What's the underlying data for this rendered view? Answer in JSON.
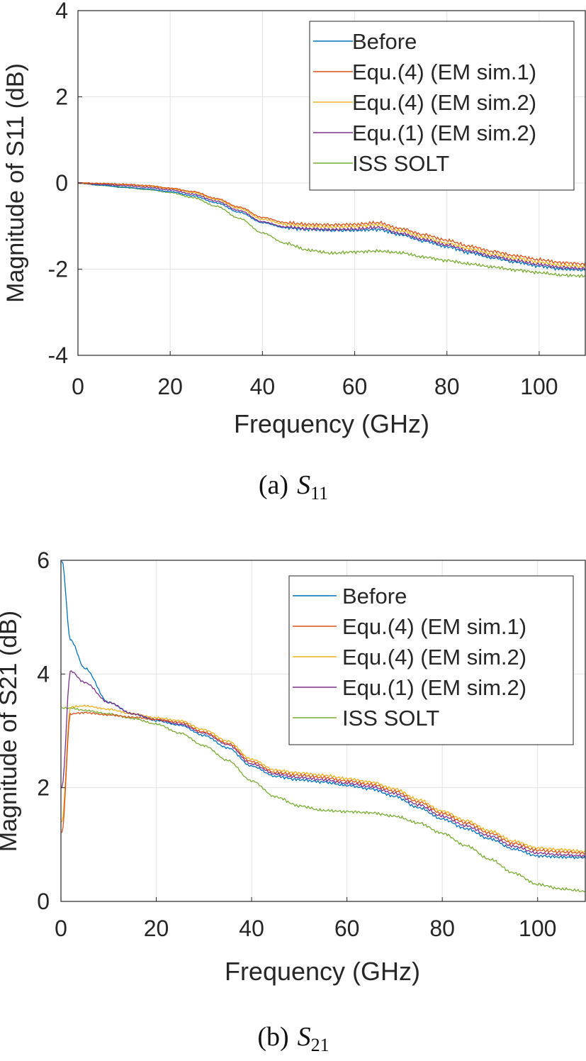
{
  "chart_data": [
    {
      "type": "line",
      "xlabel": "Frequency (GHz)",
      "ylabel": "Magnitude of S11 (dB)",
      "xlim": [
        0,
        110
      ],
      "ylim": [
        -4,
        4
      ],
      "xticks": [
        0,
        20,
        40,
        60,
        80,
        100
      ],
      "yticks": [
        -4,
        -2,
        0,
        2,
        4
      ],
      "xtick_labels": [
        "0",
        "20",
        "40",
        "60",
        "80",
        "100"
      ],
      "ytick_labels": [
        "-4",
        "-2",
        "0",
        "2",
        "4"
      ],
      "grid": true,
      "legend_position": "top-right",
      "caption_prefix": "(a)",
      "caption_symbol": "S",
      "caption_sub": "11",
      "x": [
        0,
        5,
        10,
        15,
        20,
        25,
        30,
        35,
        40,
        45,
        50,
        55,
        60,
        65,
        70,
        75,
        80,
        85,
        90,
        95,
        100,
        105,
        110
      ],
      "series": [
        {
          "name": "Before",
          "color": "#0072BD",
          "values": [
            0.0,
            -0.05,
            -0.1,
            -0.14,
            -0.2,
            -0.3,
            -0.46,
            -0.68,
            -0.92,
            -1.04,
            -1.08,
            -1.1,
            -1.1,
            -1.08,
            -1.2,
            -1.35,
            -1.48,
            -1.62,
            -1.74,
            -1.84,
            -1.93,
            -2.0,
            -2.02
          ]
        },
        {
          "name": "Equ.(4) (EM sim.1)",
          "color": "#D95319",
          "values": [
            0.0,
            -0.01,
            -0.03,
            -0.06,
            -0.12,
            -0.2,
            -0.36,
            -0.56,
            -0.8,
            -0.92,
            -0.96,
            -0.97,
            -0.96,
            -0.92,
            -1.06,
            -1.2,
            -1.33,
            -1.47,
            -1.59,
            -1.69,
            -1.78,
            -1.85,
            -1.88
          ]
        },
        {
          "name": "Equ.(4) (EM sim.2)",
          "color": "#EDB120",
          "values": [
            0.0,
            -0.02,
            -0.04,
            -0.07,
            -0.13,
            -0.22,
            -0.38,
            -0.59,
            -0.84,
            -0.96,
            -1.0,
            -1.02,
            -1.01,
            -0.97,
            -1.11,
            -1.26,
            -1.4,
            -1.53,
            -1.65,
            -1.75,
            -1.84,
            -1.91,
            -1.94
          ]
        },
        {
          "name": "Equ.(1) (EM sim.2)",
          "color": "#7E2F8E",
          "values": [
            0.0,
            -0.03,
            -0.06,
            -0.1,
            -0.16,
            -0.26,
            -0.42,
            -0.64,
            -0.9,
            -1.02,
            -1.06,
            -1.08,
            -1.07,
            -1.03,
            -1.17,
            -1.31,
            -1.44,
            -1.58,
            -1.7,
            -1.8,
            -1.89,
            -1.96,
            -1.99
          ]
        },
        {
          "name": "ISS SOLT",
          "color": "#77AC30",
          "values": [
            0.0,
            -0.05,
            -0.1,
            -0.15,
            -0.22,
            -0.34,
            -0.54,
            -0.82,
            -1.16,
            -1.4,
            -1.56,
            -1.63,
            -1.6,
            -1.58,
            -1.62,
            -1.72,
            -1.8,
            -1.88,
            -1.95,
            -2.02,
            -2.08,
            -2.14,
            -2.16
          ]
        }
      ]
    },
    {
      "type": "line",
      "xlabel": "Frequency (GHz)",
      "ylabel": "Magnitude of S21 (dB)",
      "xlim": [
        0,
        110
      ],
      "ylim": [
        0,
        6
      ],
      "xticks": [
        0,
        20,
        40,
        60,
        80,
        100
      ],
      "yticks": [
        0,
        2,
        4,
        6
      ],
      "xtick_labels": [
        "0",
        "20",
        "40",
        "60",
        "80",
        "100"
      ],
      "ytick_labels": [
        "0",
        "2",
        "4",
        "6"
      ],
      "grid": true,
      "legend_position": "top-right",
      "caption_prefix": "(b)",
      "caption_symbol": "S",
      "caption_sub": "21",
      "x": [
        0.2,
        2,
        5,
        10,
        15,
        20,
        25,
        30,
        35,
        40,
        45,
        50,
        55,
        60,
        65,
        70,
        75,
        80,
        85,
        90,
        95,
        100,
        105,
        110
      ],
      "series": [
        {
          "name": "Before",
          "color": "#0072BD",
          "values": [
            6.0,
            4.6,
            4.1,
            3.5,
            3.3,
            3.18,
            3.1,
            2.92,
            2.7,
            2.38,
            2.2,
            2.14,
            2.1,
            2.04,
            1.98,
            1.85,
            1.65,
            1.45,
            1.28,
            1.1,
            0.92,
            0.8,
            0.78,
            0.77
          ]
        },
        {
          "name": "Equ.(4) (EM sim.1)",
          "color": "#D95319",
          "values": [
            1.2,
            3.3,
            3.32,
            3.28,
            3.24,
            3.2,
            3.15,
            2.98,
            2.78,
            2.46,
            2.27,
            2.22,
            2.18,
            2.12,
            2.06,
            1.94,
            1.75,
            1.55,
            1.38,
            1.2,
            1.02,
            0.9,
            0.87,
            0.85
          ]
        },
        {
          "name": "Equ.(4) (EM sim.2)",
          "color": "#EDB120",
          "values": [
            1.4,
            3.42,
            3.44,
            3.38,
            3.3,
            3.23,
            3.18,
            3.02,
            2.82,
            2.5,
            2.31,
            2.26,
            2.22,
            2.16,
            2.1,
            1.98,
            1.79,
            1.59,
            1.42,
            1.24,
            1.06,
            0.94,
            0.91,
            0.88
          ]
        },
        {
          "name": "Equ.(1) (EM sim.2)",
          "color": "#7E2F8E",
          "values": [
            2.0,
            4.05,
            3.85,
            3.5,
            3.3,
            3.2,
            3.12,
            2.96,
            2.76,
            2.42,
            2.24,
            2.18,
            2.14,
            2.08,
            2.02,
            1.9,
            1.7,
            1.5,
            1.33,
            1.15,
            0.97,
            0.85,
            0.82,
            0.8
          ]
        },
        {
          "name": "ISS SOLT",
          "color": "#77AC30",
          "values": [
            3.4,
            3.4,
            3.36,
            3.3,
            3.22,
            3.12,
            2.96,
            2.74,
            2.48,
            2.12,
            1.84,
            1.68,
            1.6,
            1.58,
            1.56,
            1.5,
            1.38,
            1.2,
            0.98,
            0.74,
            0.5,
            0.3,
            0.22,
            0.18
          ]
        }
      ]
    }
  ]
}
